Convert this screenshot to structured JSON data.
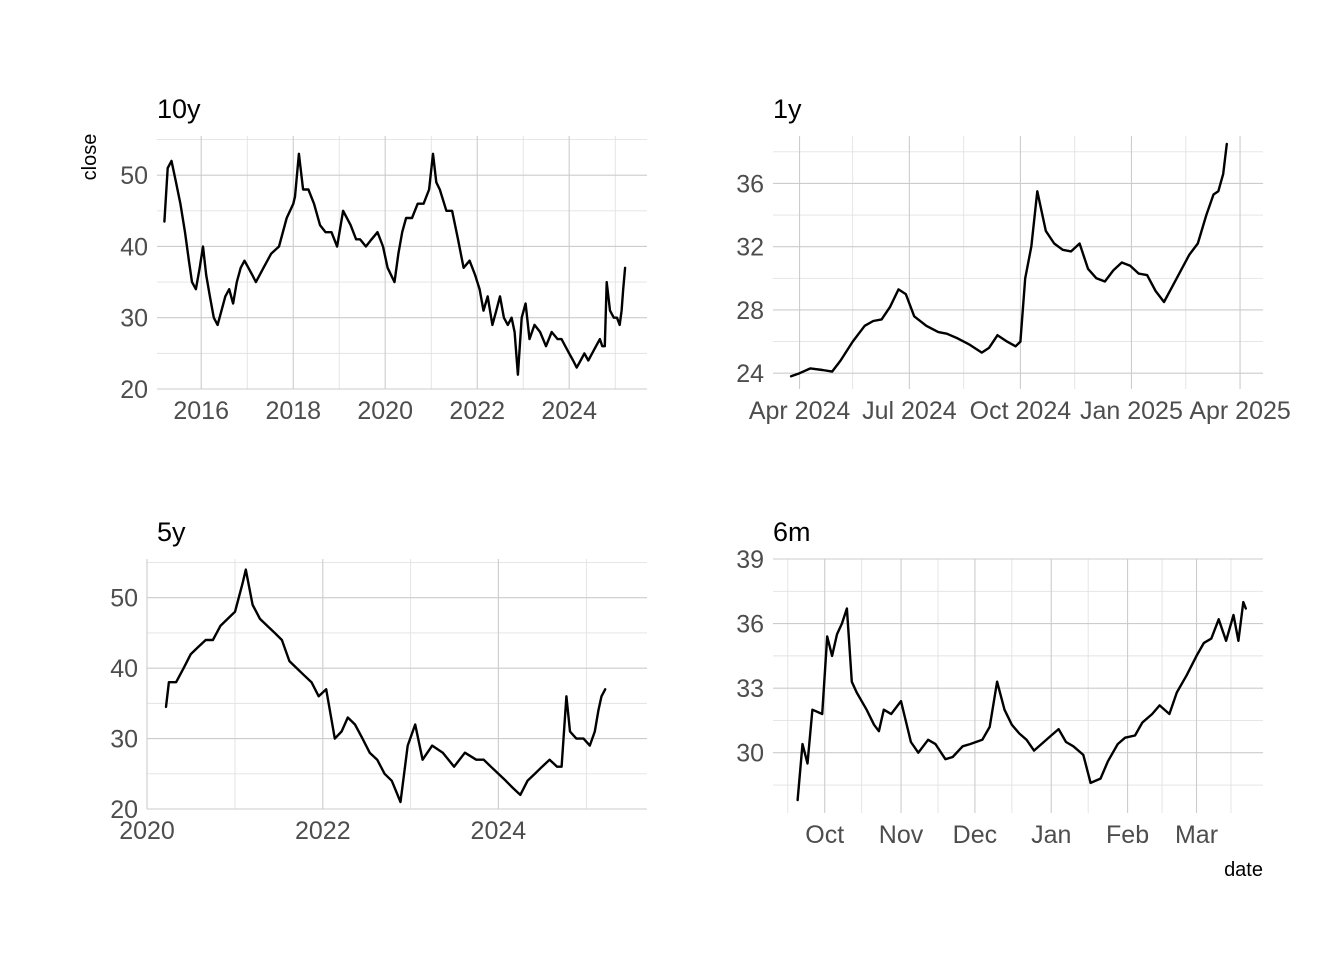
{
  "figure": {
    "ylabel": "close",
    "xlabel": "date"
  },
  "chart_data": [
    {
      "type": "line",
      "title": "10y",
      "xlim": [
        "2015-01-15",
        "2025-09-10"
      ],
      "ylim": [
        20,
        55.5
      ],
      "ylabel": "close",
      "xlabel": "",
      "grid": true,
      "yticks": [
        20,
        30,
        40,
        50
      ],
      "xticks": [
        {
          "date": "2016-01-01",
          "label": "2016"
        },
        {
          "date": "2018-01-01",
          "label": "2018"
        },
        {
          "date": "2020-01-01",
          "label": "2020"
        },
        {
          "date": "2022-01-01",
          "label": "2022"
        },
        {
          "date": "2024-01-01",
          "label": "2024"
        }
      ],
      "x_minor": [
        "2015-01-01",
        "2017-01-01",
        "2019-01-01",
        "2021-01-01",
        "2023-01-01",
        "2025-01-01"
      ],
      "x": [
        "2015-03-15",
        "2015-04-10",
        "2015-05-10",
        "2015-06-15",
        "2015-07-20",
        "2015-08-25",
        "2015-09-25",
        "2015-10-20",
        "2015-11-20",
        "2015-12-20",
        "2016-01-15",
        "2016-02-10",
        "2016-03-10",
        "2016-04-10",
        "2016-05-10",
        "2016-06-10",
        "2016-07-10",
        "2016-08-10",
        "2016-09-10",
        "2016-10-10",
        "2016-11-10",
        "2016-12-10",
        "2017-01-10",
        "2017-02-10",
        "2017-03-10",
        "2017-05-10",
        "2017-07-10",
        "2017-09-10",
        "2017-11-10",
        "2018-01-01",
        "2018-01-15",
        "2018-02-15",
        "2018-03-20",
        "2018-05-01",
        "2018-06-15",
        "2018-08-01",
        "2018-09-15",
        "2018-11-01",
        "2018-12-15",
        "2019-02-01",
        "2019-04-01",
        "2019-05-15",
        "2019-06-15",
        "2019-08-01",
        "2019-09-15",
        "2019-11-01",
        "2019-12-15",
        "2020-01-20",
        "2020-03-15",
        "2020-04-15",
        "2020-05-15",
        "2020-06-15",
        "2020-08-01",
        "2020-09-15",
        "2020-11-01",
        "2020-12-15",
        "2021-01-15",
        "2021-02-10",
        "2021-03-10",
        "2021-05-01",
        "2021-06-15",
        "2021-08-01",
        "2021-09-15",
        "2021-11-01",
        "2021-12-15",
        "2022-01-20",
        "2022-02-20",
        "2022-03-25",
        "2022-05-01",
        "2022-06-01",
        "2022-07-01",
        "2022-08-01",
        "2022-09-01",
        "2022-10-01",
        "2022-10-25",
        "2022-11-20",
        "2022-12-20",
        "2023-01-20",
        "2023-02-20",
        "2023-04-01",
        "2023-05-15",
        "2023-07-01",
        "2023-08-15",
        "2023-10-01",
        "2023-11-01",
        "2023-12-01",
        "2024-01-01",
        "2024-02-01",
        "2024-03-01",
        "2024-04-01",
        "2024-05-01",
        "2024-06-01",
        "2024-07-01",
        "2024-08-01",
        "2024-09-01",
        "2024-09-20",
        "2024-10-10",
        "2024-10-25",
        "2024-11-20",
        "2024-12-20",
        "2025-01-15",
        "2025-02-05",
        "2025-02-20",
        "2025-03-05",
        "2025-03-20"
      ],
      "series": [
        {
          "values": [
            43.5,
            51,
            52,
            49,
            46,
            42,
            38,
            35,
            34,
            37,
            40,
            36,
            33,
            30,
            29,
            31,
            33,
            34,
            32,
            35,
            37,
            38,
            37,
            36,
            35,
            37,
            39,
            40,
            44,
            46,
            47,
            53,
            48,
            48,
            46,
            43,
            42,
            42,
            40,
            45,
            43,
            41,
            41,
            40,
            41,
            42,
            40,
            37,
            35,
            39,
            42,
            44,
            44,
            46,
            46,
            48,
            53,
            49,
            48,
            45,
            45,
            41,
            37,
            38,
            36,
            34,
            31,
            33,
            29,
            31,
            33,
            30,
            29,
            30,
            28,
            22,
            30,
            32,
            27,
            29,
            28,
            26,
            28,
            27,
            27,
            26,
            25,
            24,
            23,
            24,
            25,
            24,
            25,
            26,
            27,
            26,
            26,
            35,
            31,
            30,
            30,
            29,
            31,
            34,
            37
          ]
        }
      ]
    },
    {
      "type": "line",
      "title": "1y",
      "xlim": [
        "2024-03-10",
        "2025-04-20"
      ],
      "ylim": [
        23,
        39
      ],
      "xlabel": "",
      "ylabel": "",
      "grid": true,
      "yticks": [
        24,
        28,
        32,
        36
      ],
      "xticks": [
        {
          "date": "2024-04-01",
          "label": "Apr 2024"
        },
        {
          "date": "2024-07-01",
          "label": "Jul 2024"
        },
        {
          "date": "2024-10-01",
          "label": "Oct 2024"
        },
        {
          "date": "2025-01-01",
          "label": "Jan 2025"
        },
        {
          "date": "2025-04-01",
          "label": "Apr 2025"
        }
      ],
      "x_minor": [
        "2024-05-15",
        "2024-08-15",
        "2024-11-15",
        "2025-02-15"
      ],
      "x": [
        "2024-03-25",
        "2024-04-01",
        "2024-04-10",
        "2024-04-20",
        "2024-04-28",
        "2024-05-05",
        "2024-05-15",
        "2024-05-25",
        "2024-06-01",
        "2024-06-08",
        "2024-06-15",
        "2024-06-22",
        "2024-06-28",
        "2024-07-05",
        "2024-07-15",
        "2024-07-25",
        "2024-08-01",
        "2024-08-10",
        "2024-08-20",
        "2024-08-30",
        "2024-09-05",
        "2024-09-12",
        "2024-09-20",
        "2024-09-27",
        "2024-10-01",
        "2024-10-05",
        "2024-10-10",
        "2024-10-15",
        "2024-10-22",
        "2024-10-29",
        "2024-11-05",
        "2024-11-12",
        "2024-11-19",
        "2024-11-26",
        "2024-12-03",
        "2024-12-10",
        "2024-12-17",
        "2024-12-24",
        "2024-12-31",
        "2025-01-07",
        "2025-01-14",
        "2025-01-21",
        "2025-01-28",
        "2025-02-04",
        "2025-02-11",
        "2025-02-18",
        "2025-02-25",
        "2025-03-04",
        "2025-03-10",
        "2025-03-14",
        "2025-03-18",
        "2025-03-21"
      ],
      "series": [
        {
          "values": [
            23.8,
            24,
            24.3,
            24.2,
            24.1,
            24.8,
            26,
            27,
            27.3,
            27.4,
            28.2,
            29.3,
            29,
            27.6,
            27,
            26.6,
            26.5,
            26.2,
            25.8,
            25.3,
            25.6,
            26.4,
            26,
            25.7,
            26,
            30,
            32,
            35.5,
            33,
            32.2,
            31.8,
            31.7,
            32.2,
            30.6,
            30,
            29.8,
            30.5,
            31,
            30.8,
            30.3,
            30.2,
            29.2,
            28.5,
            29.5,
            30.5,
            31.5,
            32.2,
            34,
            35.3,
            35.5,
            36.6,
            38.5
          ]
        }
      ]
    },
    {
      "type": "line",
      "title": "5y",
      "xlim": [
        "2020-01-01",
        "2025-09-10"
      ],
      "ylim": [
        20,
        55.5
      ],
      "xlabel": "",
      "ylabel": "",
      "grid": true,
      "yticks": [
        20,
        30,
        40,
        50
      ],
      "xticks": [
        {
          "date": "2020-01-01",
          "label": "2020"
        },
        {
          "date": "2022-01-01",
          "label": "2022"
        },
        {
          "date": "2024-01-01",
          "label": "2024"
        }
      ],
      "x_minor": [
        "2021-01-01",
        "2023-01-01",
        "2025-01-01"
      ],
      "x": [
        "2020-03-20",
        "2020-04-01",
        "2020-05-01",
        "2020-06-01",
        "2020-07-01",
        "2020-08-01",
        "2020-09-01",
        "2020-10-01",
        "2020-11-01",
        "2020-12-01",
        "2021-01-01",
        "2021-02-01",
        "2021-02-15",
        "2021-03-15",
        "2021-04-15",
        "2021-05-15",
        "2021-06-15",
        "2021-07-15",
        "2021-08-15",
        "2021-09-15",
        "2021-10-15",
        "2021-11-15",
        "2021-12-15",
        "2022-01-15",
        "2022-02-20",
        "2022-03-20",
        "2022-04-15",
        "2022-05-15",
        "2022-06-15",
        "2022-07-15",
        "2022-08-15",
        "2022-09-15",
        "2022-10-15",
        "2022-11-20",
        "2022-12-20",
        "2023-01-20",
        "2023-02-20",
        "2023-04-01",
        "2023-05-15",
        "2023-07-01",
        "2023-08-15",
        "2023-10-01",
        "2023-11-01",
        "2023-12-01",
        "2024-01-01",
        "2024-02-01",
        "2024-03-01",
        "2024-04-01",
        "2024-05-01",
        "2024-06-01",
        "2024-07-01",
        "2024-08-01",
        "2024-09-01",
        "2024-09-20",
        "2024-10-10",
        "2024-10-25",
        "2024-11-20",
        "2024-12-20",
        "2025-01-15",
        "2025-02-05",
        "2025-02-20",
        "2025-03-05",
        "2025-03-20"
      ],
      "series": [
        {
          "values": [
            34.5,
            38,
            38,
            40,
            42,
            43,
            44,
            44,
            46,
            47,
            48,
            52,
            54,
            49,
            47,
            46,
            45,
            44,
            41,
            40,
            39,
            38,
            36,
            37,
            30,
            31,
            33,
            32,
            30,
            28,
            27,
            25,
            24,
            21,
            29,
            32,
            27,
            29,
            28,
            26,
            28,
            27,
            27,
            26,
            25,
            24,
            23,
            22,
            24,
            25,
            26,
            27,
            26,
            26,
            36,
            31,
            30,
            30,
            29,
            31,
            34,
            36,
            37
          ]
        }
      ]
    },
    {
      "type": "line",
      "title": "6m",
      "xlim": [
        "2024-09-10",
        "2025-03-28"
      ],
      "ylim": [
        27.2,
        39
      ],
      "xlabel": "date",
      "ylabel": "",
      "grid": true,
      "yticks": [
        30,
        33,
        36,
        39
      ],
      "xticks": [
        {
          "date": "2024-10-01",
          "label": "Oct"
        },
        {
          "date": "2024-11-01",
          "label": "Nov"
        },
        {
          "date": "2024-12-01",
          "label": "Dec"
        },
        {
          "date": "2025-01-01",
          "label": "Jan"
        },
        {
          "date": "2025-02-01",
          "label": "Feb"
        },
        {
          "date": "2025-03-01",
          "label": "Mar"
        }
      ],
      "x_minor": [
        "2024-09-16",
        "2024-10-16",
        "2024-11-16",
        "2024-12-16",
        "2025-01-16",
        "2025-02-15",
        "2025-03-15"
      ],
      "x": [
        "2024-09-20",
        "2024-09-22",
        "2024-09-24",
        "2024-09-26",
        "2024-09-30",
        "2024-10-02",
        "2024-10-04",
        "2024-10-06",
        "2024-10-08",
        "2024-10-10",
        "2024-10-12",
        "2024-10-14",
        "2024-10-18",
        "2024-10-21",
        "2024-10-23",
        "2024-10-25",
        "2024-10-28",
        "2024-11-01",
        "2024-11-05",
        "2024-11-08",
        "2024-11-12",
        "2024-11-15",
        "2024-11-19",
        "2024-11-22",
        "2024-11-26",
        "2024-11-29",
        "2024-12-04",
        "2024-12-07",
        "2024-12-10",
        "2024-12-13",
        "2024-12-16",
        "2024-12-19",
        "2024-12-22",
        "2024-12-25",
        "2024-12-28",
        "2025-01-01",
        "2025-01-04",
        "2025-01-07",
        "2025-01-10",
        "2025-01-14",
        "2025-01-17",
        "2025-01-21",
        "2025-01-24",
        "2025-01-28",
        "2025-01-31",
        "2025-02-04",
        "2025-02-07",
        "2025-02-11",
        "2025-02-14",
        "2025-02-18",
        "2025-02-21",
        "2025-02-25",
        "2025-03-01",
        "2025-03-04",
        "2025-03-07",
        "2025-03-10",
        "2025-03-13",
        "2025-03-16",
        "2025-03-18",
        "2025-03-20",
        "2025-03-21"
      ],
      "series": [
        {
          "values": [
            27.8,
            30.4,
            29.5,
            32,
            31.8,
            35.4,
            34.5,
            35.5,
            36,
            36.7,
            33.3,
            32.8,
            32,
            31.3,
            31,
            32,
            31.8,
            32.4,
            30.5,
            30,
            30.6,
            30.4,
            29.7,
            29.8,
            30.3,
            30.4,
            30.6,
            31.2,
            33.3,
            32,
            31.3,
            30.9,
            30.6,
            30.1,
            30.4,
            30.8,
            31.1,
            30.5,
            30.3,
            29.9,
            28.6,
            28.8,
            29.6,
            30.4,
            30.7,
            30.8,
            31.4,
            31.8,
            32.2,
            31.8,
            32.8,
            33.6,
            34.5,
            35.1,
            35.3,
            36.2,
            35.2,
            36.4,
            35.2,
            37,
            36.7
          ]
        }
      ]
    }
  ]
}
